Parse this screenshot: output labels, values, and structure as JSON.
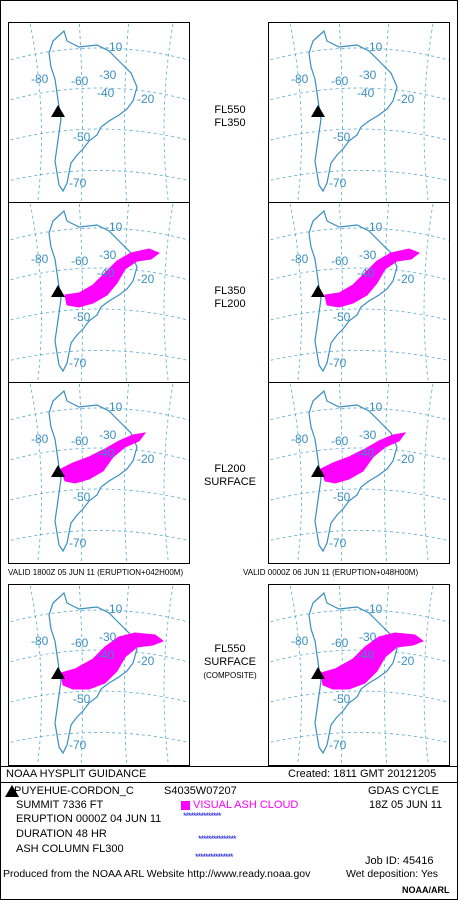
{
  "panels": [
    {
      "id": "row1-left",
      "valid_index": 0,
      "cloud": "none"
    },
    {
      "id": "row1-right",
      "valid_index": 1,
      "cloud": "none"
    },
    {
      "id": "row2-left",
      "valid_index": 0,
      "cloud": "mid"
    },
    {
      "id": "row2-right",
      "valid_index": 1,
      "cloud": "mid"
    },
    {
      "id": "row3-left",
      "valid_index": 0,
      "cloud": "low"
    },
    {
      "id": "row3-right",
      "valid_index": 1,
      "cloud": "low"
    },
    {
      "id": "row4-left",
      "valid_index": 0,
      "cloud": "composite"
    },
    {
      "id": "row4-right",
      "valid_index": 1,
      "cloud": "composite"
    }
  ],
  "map_labels": {
    "lon_labels": [
      "-80",
      "-60",
      "-40",
      "-20"
    ],
    "lat_labels": [
      "-10",
      "-30",
      "-50",
      "-70"
    ]
  },
  "levels": [
    {
      "top": "FL550",
      "bottom": "FL350",
      "note": ""
    },
    {
      "top": "FL350",
      "bottom": "FL200",
      "note": ""
    },
    {
      "top": "FL200",
      "bottom": "SURFACE",
      "note": ""
    },
    {
      "top": "FL550",
      "bottom": "SURFACE",
      "note": "(COMPOSITE)"
    }
  ],
  "valid": [
    "VALID 1800Z 05 JUN 11 (ERUPTION+042H00M)",
    "VALID 0000Z 06 JUN 11 (ERUPTION+048H00M)"
  ],
  "footer": {
    "guidance": "NOAA HYSPLIT GUIDANCE",
    "created": "Created: 1811 GMT 20121205",
    "volcano": "PUYEHUE-CORDON_C",
    "location": "S4035W07207",
    "summit": "SUMMIT  7336 FT",
    "eruption": "ERUPTION 0000Z 04 JUN 11",
    "duration": "DURATION    48 HR",
    "ash_column": "ASH COLUMN FL300",
    "legend_label": "VISUAL ASH CLOUD",
    "stars": "***************",
    "gdas": "GDAS CYCLE",
    "cycle": "18Z 05 JUN 11",
    "job": "Job ID: 45416",
    "produced": "Produced from the NOAA ARL Website http://www.ready.noaa.gov",
    "wet": "Wet deposition: Yes",
    "noaa": "NOAA/ARL"
  },
  "colors": {
    "coast": "#3a8fbf",
    "grid": "#5aaad0",
    "ash": "#ff00ff",
    "label": "#3a8fbf",
    "stars": "#1010e0"
  }
}
